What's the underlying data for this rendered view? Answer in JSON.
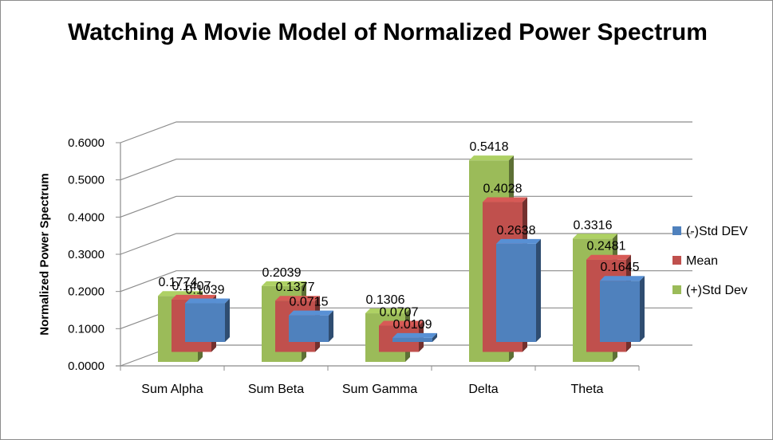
{
  "chart_data": {
    "type": "bar",
    "title": "Watching A Movie Model of Normalized Power Spectrum",
    "ylabel": "Normalized Power Spectrum",
    "xlabel": "",
    "categories": [
      "Sum Alpha",
      "Sum Beta",
      "Sum Gamma",
      "Delta",
      "Theta"
    ],
    "series": [
      {
        "name": "(-)Std DEV",
        "color": "#4f81bd",
        "values": [
          0.1039,
          0.0715,
          0.0109,
          0.2638,
          0.1645
        ]
      },
      {
        "name": "Mean",
        "color": "#c0504d",
        "values": [
          0.1407,
          0.1377,
          0.0707,
          0.4028,
          0.2481
        ]
      },
      {
        "name": "(+)Std Dev",
        "color": "#9bbb59",
        "values": [
          0.1774,
          0.2039,
          0.1306,
          0.5418,
          0.3316
        ]
      }
    ],
    "ylim": [
      0,
      0.6
    ],
    "yticks": [
      "0.0000",
      "0.1000",
      "0.2000",
      "0.3000",
      "0.4000",
      "0.5000",
      "0.6000"
    ],
    "legend_position": "right",
    "grid": true,
    "style": "3d-clustered"
  }
}
